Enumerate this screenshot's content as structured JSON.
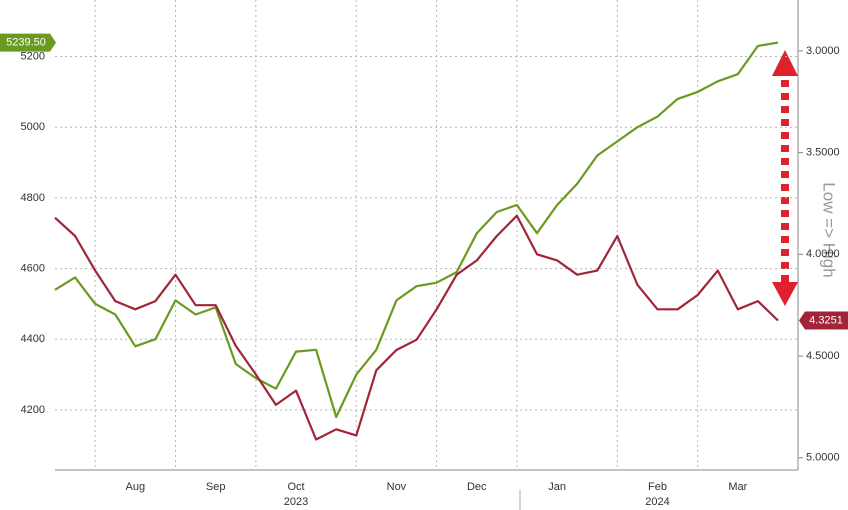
{
  "chart_data": {
    "type": "line",
    "categories": [
      null,
      null,
      null,
      null,
      "Aug",
      null,
      null,
      null,
      "Sep",
      null,
      null,
      null,
      "Oct",
      null,
      null,
      null,
      null,
      "Nov",
      null,
      null,
      null,
      "Dec",
      null,
      null,
      null,
      "Jan",
      null,
      null,
      null,
      null,
      "Feb",
      null,
      null,
      null,
      "Mar",
      null,
      null
    ],
    "group_labels": [
      "2023",
      "2024"
    ],
    "series": [
      {
        "color": "#6a9a1f",
        "axis": "y",
        "values": [
          4540,
          4575,
          4500,
          4470,
          4380,
          4400,
          4510,
          4470,
          4490,
          4330,
          4290,
          4260,
          4365,
          4370,
          4180,
          4300,
          4370,
          4510,
          4550,
          4560,
          4590,
          4700,
          4760,
          4780,
          4700,
          4780,
          4840,
          4920,
          4960,
          5000,
          5030,
          5080,
          5100,
          5130,
          5150,
          5230,
          5239.5
        ],
        "value_labels": [
          null,
          null,
          null,
          null,
          null,
          null,
          null,
          null,
          null,
          null,
          null,
          null,
          null,
          null,
          null,
          null,
          null,
          null,
          null,
          null,
          null,
          null,
          null,
          null,
          null,
          null,
          null,
          null,
          null,
          null,
          null,
          null,
          null,
          null,
          null,
          null,
          "5239.50"
        ]
      },
      {
        "color": "#a0253a",
        "axis": "y2",
        "values": [
          3.82,
          3.91,
          4.08,
          4.23,
          4.27,
          4.23,
          4.1,
          4.25,
          4.25,
          4.45,
          4.59,
          4.74,
          4.67,
          4.91,
          4.86,
          4.89,
          4.57,
          4.47,
          4.42,
          4.27,
          4.1,
          4.03,
          3.91,
          3.81,
          4.0,
          4.03,
          4.1,
          4.08,
          3.91,
          4.15,
          4.27,
          4.27,
          4.2,
          4.08,
          4.27,
          4.23,
          4.3251
        ],
        "value_labels": [
          null,
          null,
          null,
          null,
          null,
          null,
          null,
          null,
          null,
          null,
          null,
          null,
          null,
          null,
          null,
          null,
          null,
          null,
          null,
          null,
          null,
          null,
          null,
          null,
          null,
          null,
          null,
          null,
          null,
          null,
          null,
          null,
          null,
          null,
          null,
          null,
          "4.3251"
        ]
      }
    ],
    "ylim": [
      4030,
      5360
    ],
    "yticks": [
      4200,
      4400,
      4600,
      4800,
      5000,
      5200
    ],
    "y2lim": [
      2.75,
      5.06
    ],
    "y2_inverted": true,
    "y2ticks": [
      {
        "value": 3,
        "label": "3.0000"
      },
      {
        "value": 3.5,
        "label": "3.5000"
      },
      {
        "value": 4,
        "label": "4.0000"
      },
      {
        "value": 4.5,
        "label": "4.5000"
      },
      {
        "value": 5,
        "label": "5.0000"
      }
    ],
    "y2_annotation": "Low => High",
    "grid": true
  }
}
